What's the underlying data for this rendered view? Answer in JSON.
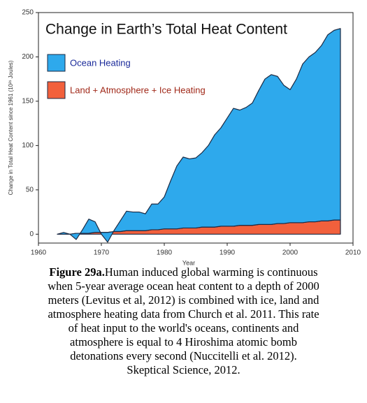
{
  "chart_data": {
    "type": "stacked_area",
    "title": "Change in Earth’s Total Heat Content",
    "x_label": "Year",
    "y_label": "Change in Total Heat Content since 1961 (10²¹ Joules)",
    "x": [
      1963,
      1964,
      1965,
      1966,
      1967,
      1968,
      1969,
      1970,
      1971,
      1972,
      1973,
      1974,
      1975,
      1976,
      1977,
      1978,
      1979,
      1980,
      1981,
      1982,
      1983,
      1984,
      1985,
      1986,
      1987,
      1988,
      1989,
      1990,
      1991,
      1992,
      1993,
      1994,
      1995,
      1996,
      1997,
      1998,
      1999,
      2000,
      2001,
      2002,
      2003,
      2004,
      2005,
      2006,
      2007,
      2008
    ],
    "series": [
      {
        "name": "Land + Atmosphere + Ice Heating",
        "color": "#f2603c",
        "values": [
          0,
          0,
          0,
          1,
          1,
          1,
          2,
          2,
          2,
          3,
          3,
          4,
          4,
          4,
          4,
          5,
          5,
          6,
          6,
          6,
          7,
          7,
          7,
          8,
          8,
          8,
          9,
          9,
          9,
          10,
          10,
          10,
          11,
          11,
          11,
          12,
          12,
          13,
          13,
          13,
          14,
          14,
          15,
          15,
          16,
          16
        ]
      },
      {
        "name": "Ocean Heating",
        "color": "#2ea9ec",
        "values": [
          0,
          2,
          0,
          -7,
          4,
          16,
          12,
          -2,
          -11,
          1,
          12,
          22,
          21,
          21,
          19,
          29,
          29,
          36,
          54,
          71,
          80,
          78,
          79,
          84,
          92,
          104,
          111,
          122,
          133,
          130,
          133,
          138,
          151,
          164,
          169,
          166,
          156,
          150,
          162,
          179,
          186,
          191,
          198,
          210,
          214,
          216
        ]
      }
    ],
    "xlim": [
      1960,
      2010
    ],
    "xticks": [
      1960,
      1970,
      1980,
      1990,
      2000,
      2010
    ],
    "ylim": [
      -10,
      250
    ],
    "yticks": [
      0,
      50,
      100,
      150,
      200,
      250
    ],
    "caption": {
      "label": "Figure 29a.",
      "lines": [
        "Human induced global warming is continuous",
        "when 5-year average ocean heat content to a depth of 2000",
        "meters (Levitus et al, 2012) is combined with ice, land and",
        "atmosphere heating data from Church et al. 2011. This rate",
        "of heat input to the world's oceans, continents and",
        "atmosphere is equal to 4 Hiroshima atomic bomb",
        "detonations every second (Nuccitelli et al. 2012).",
        "Skeptical Science, 2012."
      ]
    }
  }
}
